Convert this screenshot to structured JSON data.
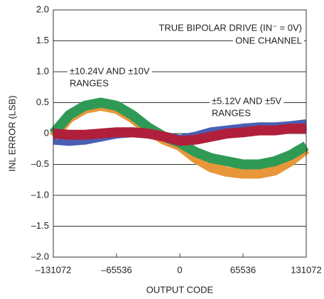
{
  "chart_data": {
    "type": "line",
    "xlabel": "OUTPUT CODE",
    "ylabel": "INL ERROR (LSB)",
    "annotations": [
      "TRUE BIPOLAR DRIVE (IN⁻ = 0V)",
      "ONE CHANNEL",
      "±10.24V AND ±10V",
      "RANGES",
      "±5.12V AND ±5V",
      "RANGES"
    ],
    "x": [
      -131072,
      -114688,
      -98304,
      -81920,
      -65536,
      -49152,
      -32768,
      -16384,
      0,
      16384,
      32768,
      49152,
      65536,
      81920,
      98304,
      114688,
      131072
    ],
    "series": [
      {
        "color": "#4a5fb4",
        "values": [
          -0.1,
          -0.12,
          -0.1,
          -0.05,
          0,
          0.02,
          0,
          -0.05,
          -0.1,
          -0.05,
          0.02,
          0.05,
          0.08,
          0.1,
          0.1,
          0.12,
          0.15
        ]
      },
      {
        "color": "#e8963a",
        "values": [
          -0.05,
          0.25,
          0.4,
          0.45,
          0.4,
          0.25,
          0.05,
          -0.1,
          -0.2,
          -0.4,
          -0.55,
          -0.62,
          -0.65,
          -0.65,
          -0.6,
          -0.45,
          -0.25
        ]
      },
      {
        "color": "#2f9a55",
        "values": [
          0,
          0.3,
          0.45,
          0.5,
          0.45,
          0.3,
          0.1,
          -0.05,
          -0.15,
          -0.3,
          -0.4,
          -0.45,
          -0.5,
          -0.5,
          -0.45,
          -0.35,
          -0.2
        ]
      },
      {
        "color": "#b01f3c",
        "values": [
          0,
          -0.02,
          -0.02,
          0,
          0.02,
          0.02,
          0,
          -0.05,
          -0.12,
          -0.1,
          -0.05,
          0,
          0.02,
          0.05,
          0.05,
          0.08,
          0.08
        ]
      }
    ],
    "xlim": [
      -131072,
      131072
    ],
    "xticks": [
      {
        "value": -131072,
        "label": "–131072"
      },
      {
        "value": -65536,
        "label": "–65536"
      },
      0,
      65536,
      131072
    ],
    "ylim": [
      -2,
      2
    ],
    "yticks": [
      {
        "value": 2,
        "label": "2.0"
      },
      1.5,
      {
        "value": 1,
        "label": "1.0"
      },
      0.5,
      0,
      {
        "value": -0.5,
        "label": "–0.5"
      },
      {
        "value": -1,
        "label": "–1.0"
      },
      {
        "value": -1.5,
        "label": "–1.5"
      },
      {
        "value": -2,
        "label": "–2.0"
      }
    ],
    "grid": true
  }
}
